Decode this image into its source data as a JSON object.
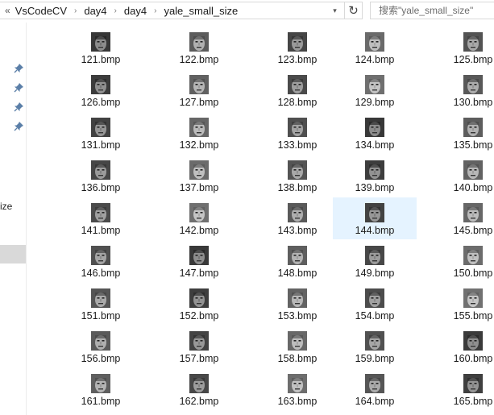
{
  "breadcrumb": {
    "overflow": "«",
    "items": [
      "VsCodeCV",
      "day4",
      "day4",
      "yale_small_size"
    ]
  },
  "search": {
    "placeholder": "搜索\"yale_small_size\""
  },
  "nav": {
    "label_fragment": "ize"
  },
  "files": [
    "121.bmp",
    "122.bmp",
    "123.bmp",
    "124.bmp",
    "125.bmp",
    "126.bmp",
    "127.bmp",
    "128.bmp",
    "129.bmp",
    "130.bmp",
    "131.bmp",
    "132.bmp",
    "133.bmp",
    "134.bmp",
    "135.bmp",
    "136.bmp",
    "137.bmp",
    "138.bmp",
    "139.bmp",
    "140.bmp",
    "141.bmp",
    "142.bmp",
    "143.bmp",
    "144.bmp",
    "145.bmp",
    "146.bmp",
    "147.bmp",
    "148.bmp",
    "149.bmp",
    "150.bmp",
    "151.bmp",
    "152.bmp",
    "153.bmp",
    "154.bmp",
    "155.bmp",
    "156.bmp",
    "157.bmp",
    "158.bmp",
    "159.bmp",
    "160.bmp",
    "161.bmp",
    "162.bmp",
    "163.bmp",
    "164.bmp",
    "165.bmp"
  ],
  "selected_file": "144.bmp",
  "colors": {
    "selection": "#e5f3ff",
    "nav_selection": "#d9d9d9"
  }
}
